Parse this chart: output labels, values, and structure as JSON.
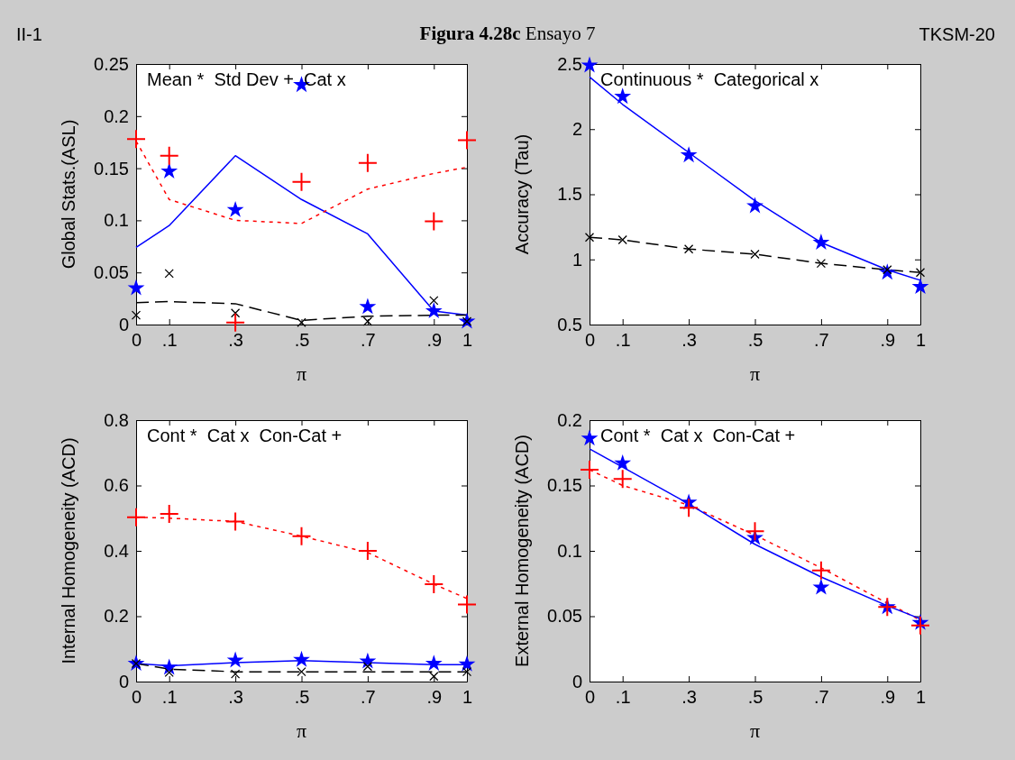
{
  "chart_data": [
    {
      "type": "scatter",
      "title": "Figura 4.28c Ensayo 7",
      "xlabel": "π",
      "ylabel": "Global Stats.(ASL)",
      "annotations": [
        "Mean *  Std Dev +  Cat x",
        "II-1",
        "TKSM-20"
      ],
      "x": [
        0,
        0.1,
        0.3,
        0.5,
        0.7,
        0.9,
        1
      ],
      "xlim": [
        0,
        1
      ],
      "xticks": [
        {
          "value": 0,
          "label": "0"
        },
        {
          "value": 0.1,
          "label": ".1"
        },
        {
          "value": 0.3,
          "label": ".3"
        },
        {
          "value": 0.5,
          "label": ".5"
        },
        {
          "value": 0.7,
          "label": ".7"
        },
        {
          "value": 0.9,
          "label": ".9"
        },
        {
          "value": 1,
          "label": "1"
        }
      ],
      "ylim": [
        0,
        0.25
      ],
      "yticks": [
        0,
        0.05,
        0.1,
        0.15,
        0.2,
        0.25
      ],
      "series": [
        {
          "type": "line",
          "color": "#0000ff",
          "line_style": "solid",
          "marker": "none",
          "values": [
            0.074,
            0.095,
            0.162,
            0.12,
            0.087,
            0.013,
            0.009
          ]
        },
        {
          "type": "line",
          "color": "#ff0000",
          "line_style": "dotted",
          "marker": "none",
          "values": [
            0.176,
            0.12,
            0.1,
            0.097,
            0.13,
            0.145,
            0.151
          ]
        },
        {
          "type": "line",
          "color": "#000000",
          "line_style": "dashed",
          "marker": "none",
          "values": [
            0.021,
            0.022,
            0.02,
            0.004,
            0.008,
            0.009,
            0.009
          ]
        },
        {
          "type": "scatter",
          "color": "#0000ff",
          "marker": "star",
          "values": [
            0.035,
            0.147,
            0.11,
            0.23,
            0.017,
            0.013,
            0.003
          ]
        },
        {
          "type": "scatter",
          "color": "#000000",
          "marker": "x",
          "values": [
            0.009,
            0.049,
            0.011,
            0.002,
            0.003,
            0.023,
            0.003
          ]
        },
        {
          "type": "scatter",
          "color": "#ff0000",
          "marker": "cross",
          "values": [
            0.178,
            0.162,
            0.002,
            0.137,
            0.155,
            0.099,
            0.177
          ]
        }
      ]
    },
    {
      "type": "scatter",
      "xlabel": "π",
      "ylabel": "Accuracy (Tau)",
      "annotations": [
        "Continuous *  Categorical x"
      ],
      "x": [
        0,
        0.1,
        0.3,
        0.5,
        0.7,
        0.9,
        1
      ],
      "xlim": [
        0,
        1
      ],
      "xticks": [
        {
          "value": 0,
          "label": "0"
        },
        {
          "value": 0.1,
          "label": ".1"
        },
        {
          "value": 0.3,
          "label": ".3"
        },
        {
          "value": 0.5,
          "label": ".5"
        },
        {
          "value": 0.7,
          "label": ".7"
        },
        {
          "value": 0.9,
          "label": ".9"
        },
        {
          "value": 1,
          "label": "1"
        }
      ],
      "ylim": [
        0.5,
        2.5
      ],
      "yticks": [
        0.5,
        1,
        1.5,
        2,
        2.5
      ],
      "series": [
        {
          "type": "line",
          "color": "#0000ff",
          "line_style": "solid",
          "marker": "none",
          "values": [
            2.4,
            2.19,
            1.82,
            1.45,
            1.13,
            0.92,
            0.84
          ]
        },
        {
          "type": "line",
          "color": "#000000",
          "line_style": "dashed",
          "marker": "none",
          "values": [
            1.17,
            1.15,
            1.08,
            1.04,
            0.97,
            0.92,
            0.9
          ]
        },
        {
          "type": "scatter",
          "color": "#0000ff",
          "marker": "star",
          "values": [
            2.49,
            2.25,
            1.8,
            1.41,
            1.13,
            0.9,
            0.79
          ]
        },
        {
          "type": "scatter",
          "color": "#000000",
          "marker": "x",
          "values": [
            1.17,
            1.15,
            1.08,
            1.04,
            0.97,
            0.92,
            0.9
          ]
        }
      ]
    },
    {
      "type": "scatter",
      "xlabel": "π",
      "ylabel": "Internal Homogeneity (ACD)",
      "annotations": [
        "Cont *  Cat x  Con-Cat +"
      ],
      "x": [
        0,
        0.1,
        0.3,
        0.5,
        0.7,
        0.9,
        1
      ],
      "xlim": [
        0,
        1
      ],
      "xticks": [
        {
          "value": 0,
          "label": "0"
        },
        {
          "value": 0.1,
          "label": ".1"
        },
        {
          "value": 0.3,
          "label": ".3"
        },
        {
          "value": 0.5,
          "label": ".5"
        },
        {
          "value": 0.7,
          "label": ".7"
        },
        {
          "value": 0.9,
          "label": ".9"
        },
        {
          "value": 1,
          "label": "1"
        }
      ],
      "ylim": [
        0,
        0.8
      ],
      "yticks": [
        0,
        0.2,
        0.4,
        0.6,
        0.8
      ],
      "series": [
        {
          "type": "line",
          "color": "#ff0000",
          "line_style": "dotted",
          "marker": "none",
          "values": [
            0.503,
            0.5,
            0.49,
            0.445,
            0.395,
            0.298,
            0.254
          ]
        },
        {
          "type": "line",
          "color": "#0000ff",
          "line_style": "solid",
          "marker": "none",
          "values": [
            0.055,
            0.048,
            0.058,
            0.064,
            0.058,
            0.052,
            0.052
          ]
        },
        {
          "type": "line",
          "color": "#000000",
          "line_style": "dashed",
          "marker": "none",
          "values": [
            0.055,
            0.038,
            0.03,
            0.03,
            0.03,
            0.03,
            0.03
          ]
        },
        {
          "type": "scatter",
          "color": "#ff0000",
          "marker": "cross",
          "values": [
            0.503,
            0.513,
            0.49,
            0.445,
            0.4,
            0.298,
            0.236
          ]
        },
        {
          "type": "scatter",
          "color": "#0000ff",
          "marker": "star",
          "values": [
            0.055,
            0.043,
            0.065,
            0.067,
            0.062,
            0.055,
            0.053
          ]
        },
        {
          "type": "scatter",
          "color": "#000000",
          "marker": "x",
          "values": [
            0.055,
            0.028,
            0.023,
            0.03,
            0.046,
            0.016,
            0.03
          ]
        }
      ]
    },
    {
      "type": "scatter",
      "xlabel": "π",
      "ylabel": "External Homogeneity (ACD)",
      "annotations": [
        "Cont *  Cat x  Con-Cat +"
      ],
      "x": [
        0,
        0.1,
        0.3,
        0.5,
        0.7,
        0.9,
        1
      ],
      "xlim": [
        0,
        1
      ],
      "xticks": [
        {
          "value": 0,
          "label": "0"
        },
        {
          "value": 0.1,
          "label": ".1"
        },
        {
          "value": 0.3,
          "label": ".3"
        },
        {
          "value": 0.5,
          "label": ".5"
        },
        {
          "value": 0.7,
          "label": ".7"
        },
        {
          "value": 0.9,
          "label": ".9"
        },
        {
          "value": 1,
          "label": "1"
        }
      ],
      "ylim": [
        0,
        0.2
      ],
      "yticks": [
        0,
        0.05,
        0.1,
        0.15,
        0.2
      ],
      "series": [
        {
          "type": "line",
          "color": "#ff0000",
          "line_style": "dotted",
          "marker": "none",
          "values": [
            0.162,
            0.15,
            0.135,
            0.112,
            0.087,
            0.06,
            0.047
          ]
        },
        {
          "type": "line",
          "color": "#0000ff",
          "line_style": "solid",
          "marker": "none",
          "values": [
            0.178,
            0.164,
            0.136,
            0.105,
            0.08,
            0.058,
            0.048
          ]
        },
        {
          "type": "scatter",
          "color": "#0000ff",
          "marker": "star",
          "values": [
            0.186,
            0.167,
            0.137,
            0.11,
            0.072,
            0.057,
            0.045
          ]
        },
        {
          "type": "scatter",
          "color": "#ff0000",
          "marker": "cross",
          "values": [
            0.162,
            0.155,
            0.133,
            0.115,
            0.085,
            0.057,
            0.043
          ]
        }
      ]
    }
  ]
}
